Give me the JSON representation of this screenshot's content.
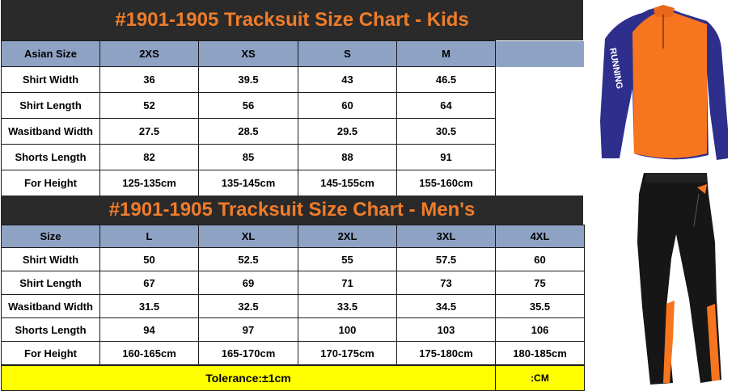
{
  "kids": {
    "title": "#1901-1905 Tracksuit Size Chart - Kids",
    "header": [
      "Asian Size",
      "2XS",
      "XS",
      "S",
      "M"
    ],
    "rows": [
      [
        "Shirt Width",
        "36",
        "39.5",
        "43",
        "46.5"
      ],
      [
        "Shirt Length",
        "52",
        "56",
        "60",
        "64"
      ],
      [
        "Wasitband Width",
        "27.5",
        "28.5",
        "29.5",
        "30.5"
      ],
      [
        "Shorts Length",
        "82",
        "85",
        "88",
        "91"
      ],
      [
        "For Height",
        "125-135cm",
        "135-145cm",
        "145-155cm",
        "155-160cm"
      ]
    ]
  },
  "mens": {
    "title": "#1901-1905 Tracksuit Size Chart - Men's",
    "header": [
      "Size",
      "L",
      "XL",
      "2XL",
      "3XL",
      "4XL"
    ],
    "rows": [
      [
        "Shirt Width",
        "50",
        "52.5",
        "55",
        "57.5",
        "60"
      ],
      [
        "Shirt Length",
        "67",
        "69",
        "71",
        "73",
        "75"
      ],
      [
        "Wasitband Width",
        "31.5",
        "32.5",
        "33.5",
        "34.5",
        "35.5"
      ],
      [
        "Shorts Length",
        "94",
        "97",
        "100",
        "103",
        "106"
      ],
      [
        "For Height",
        "160-165cm",
        "165-170cm",
        "170-175cm",
        "175-180cm",
        "180-185cm"
      ]
    ]
  },
  "footer": {
    "tolerance": "Tolerance:±1cm",
    "unit": ":CM"
  },
  "product_image": {
    "shirt_text": "RUNNING",
    "colors": {
      "orange": "#f7751e",
      "navy": "#2e2f8c",
      "black": "#161616"
    }
  },
  "colors": {
    "title_bg": "#2a2a2a",
    "title_text": "#f07c2a",
    "header_bg": "#8ea2c4",
    "footer_bg": "#ffff00"
  }
}
